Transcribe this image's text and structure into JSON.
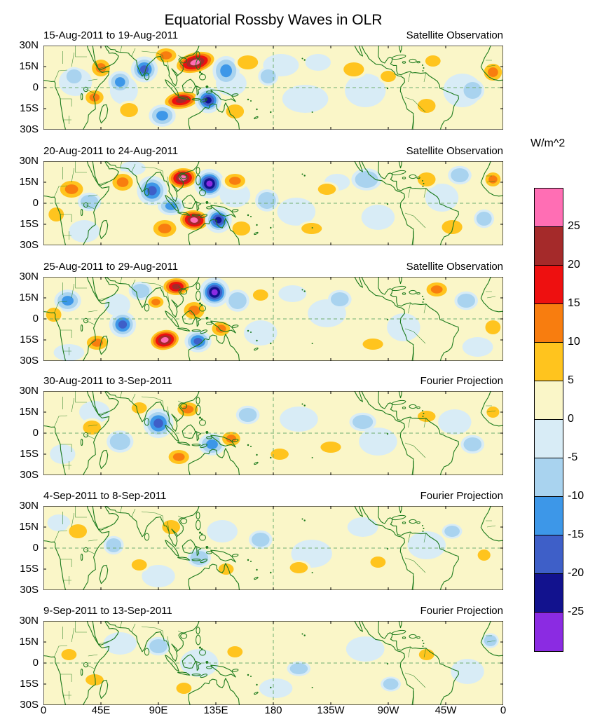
{
  "title": "Equatorial Rossby Waves in OLR",
  "colorbar": {
    "unit_label": "W/m^2",
    "tick_labels": [
      "25",
      "20",
      "15",
      "10",
      "5",
      "0",
      "-5",
      "-10",
      "-15",
      "-20",
      "-25"
    ],
    "colors_top_to_bottom": [
      "#FF6EB4",
      "#A52A2A",
      "#EE1010",
      "#F87D0F",
      "#FFC41E",
      "#FAF6C8",
      "#D8ECF6",
      "#A9D3EF",
      "#3D97E8",
      "#3E5FC8",
      "#12128E",
      "#8B2BE2"
    ]
  },
  "axes": {
    "lat_labels": [
      "30N",
      "15N",
      "0",
      "15S",
      "30S"
    ],
    "lon_labels": [
      "0",
      "45E",
      "90E",
      "135E",
      "180",
      "135W",
      "90W",
      "45W",
      "0"
    ]
  },
  "map_style": {
    "coast_color": "#1B7A1B",
    "dash_color": "#6FAE6F",
    "background": "#FAF6C8"
  },
  "chart_data": {
    "type": "heatmap",
    "title": "Equatorial Rossby Waves in OLR",
    "units": "W/m^2",
    "levels": [
      -25,
      -20,
      -15,
      -10,
      -5,
      0,
      5,
      10,
      15,
      20,
      25
    ],
    "lat_range": [
      -30,
      30
    ],
    "lon_range": [
      0,
      360
    ],
    "anomaly_format": "[lon_deg_east, lat_deg, peak_value_W_per_m2, rx_deg, ry_deg, rotation_deg]",
    "panels": [
      {
        "date_range": "15-Aug-2011 to 19-Aug-2011",
        "source": "Satellite Observation",
        "anomalies": [
          [
            25,
            4,
            -3,
            13,
            10,
            0
          ],
          [
            63,
            -2,
            -3,
            11,
            10,
            0
          ],
          [
            147,
            3,
            -3,
            12,
            9,
            0
          ],
          [
            205,
            -8,
            -3,
            18,
            10,
            0
          ],
          [
            252,
            -2,
            -3,
            16,
            12,
            0
          ],
          [
            328,
            -2,
            -3,
            15,
            12,
            0
          ],
          [
            186,
            16,
            -3,
            14,
            8,
            0
          ],
          [
            215,
            18,
            -3,
            10,
            6,
            0
          ],
          [
            119,
            18,
            26,
            15,
            7,
            -14
          ],
          [
            96,
            23,
            12,
            8,
            5,
            0
          ],
          [
            79,
            13,
            -16,
            8,
            7,
            0
          ],
          [
            143,
            12,
            -13,
            8,
            8,
            0
          ],
          [
            160,
            18,
            9,
            8,
            5,
            0
          ],
          [
            60,
            4,
            -11,
            7,
            6,
            0
          ],
          [
            45,
            14,
            13,
            7,
            6,
            0
          ],
          [
            40,
            -7,
            12,
            7,
            5,
            0
          ],
          [
            24,
            8,
            -8,
            6,
            5,
            0
          ],
          [
            108,
            -9,
            24,
            13,
            6,
            -8
          ],
          [
            129,
            -9,
            -20,
            8,
            7,
            0
          ],
          [
            93,
            -20,
            -12,
            8,
            6,
            0
          ],
          [
            67,
            -16,
            9,
            7,
            5,
            0
          ],
          [
            150,
            -17,
            9,
            7,
            5,
            0
          ],
          [
            176,
            8,
            -6,
            6,
            5,
            0
          ],
          [
            243,
            13,
            8,
            8,
            5,
            0
          ],
          [
            305,
            19,
            8,
            6,
            4,
            0
          ],
          [
            352,
            11,
            13,
            7,
            6,
            0
          ],
          [
            336,
            -2,
            -8,
            7,
            6,
            0
          ],
          [
            300,
            -13,
            8,
            7,
            5,
            0
          ],
          [
            270,
            8,
            6,
            6,
            4,
            0
          ]
        ]
      },
      {
        "date_range": "20-Aug-2011 to 24-Aug-2011",
        "source": "Satellite Observation",
        "anomalies": [
          [
            32,
            -20,
            -3,
            12,
            8,
            0
          ],
          [
            150,
            6,
            -3,
            12,
            9,
            0
          ],
          [
            198,
            -6,
            -3,
            15,
            10,
            0
          ],
          [
            262,
            -10,
            -3,
            13,
            9,
            0
          ],
          [
            312,
            4,
            -3,
            13,
            10,
            0
          ],
          [
            70,
            25,
            -3,
            10,
            5,
            0
          ],
          [
            230,
            15,
            -3,
            10,
            6,
            0
          ],
          [
            109,
            18,
            27,
            11,
            7,
            -5
          ],
          [
            130,
            14,
            -25,
            9,
            8,
            10
          ],
          [
            85,
            9,
            -16,
            9,
            8,
            0
          ],
          [
            150,
            16,
            10,
            8,
            5,
            0
          ],
          [
            62,
            15,
            11,
            8,
            6,
            0
          ],
          [
            22,
            10,
            13,
            9,
            6,
            0
          ],
          [
            36,
            1,
            -9,
            7,
            5,
            0
          ],
          [
            10,
            -8,
            9,
            6,
            5,
            0
          ],
          [
            118,
            -12,
            27,
            11,
            7,
            5
          ],
          [
            137,
            -12,
            -23,
            8,
            7,
            0
          ],
          [
            95,
            -18,
            14,
            9,
            6,
            0
          ],
          [
            100,
            -2,
            -14,
            8,
            5,
            0
          ],
          [
            155,
            -18,
            9,
            7,
            5,
            0
          ],
          [
            175,
            2,
            -6,
            7,
            6,
            0
          ],
          [
            253,
            17,
            -9,
            9,
            6,
            0
          ],
          [
            300,
            17,
            9,
            7,
            5,
            0
          ],
          [
            326,
            20,
            -9,
            7,
            5,
            0
          ],
          [
            352,
            17,
            10,
            6,
            5,
            0
          ],
          [
            320,
            -17,
            9,
            8,
            5,
            0
          ],
          [
            345,
            -11,
            -8,
            6,
            5,
            0
          ],
          [
            222,
            10,
            6,
            7,
            4,
            0
          ],
          [
            210,
            -18,
            6,
            8,
            4,
            0
          ]
        ]
      },
      {
        "date_range": "25-Aug-2011 to 29-Aug-2011",
        "source": "Satellite Observation",
        "anomalies": [
          [
            20,
            -24,
            -3,
            12,
            6,
            0
          ],
          [
            58,
            10,
            -3,
            10,
            8,
            0
          ],
          [
            170,
            -10,
            -3,
            13,
            9,
            0
          ],
          [
            222,
            4,
            -3,
            15,
            10,
            0
          ],
          [
            282,
            -6,
            -3,
            13,
            10,
            0
          ],
          [
            340,
            -20,
            -3,
            12,
            7,
            0
          ],
          [
            195,
            18,
            -3,
            11,
            6,
            0
          ],
          [
            104,
            23,
            23,
            10,
            6,
            0
          ],
          [
            134,
            19,
            -28,
            9,
            8,
            0
          ],
          [
            88,
            12,
            10,
            6,
            4,
            0
          ],
          [
            118,
            6,
            13,
            8,
            6,
            0
          ],
          [
            152,
            13,
            -9,
            7,
            6,
            0
          ],
          [
            95,
            -15,
            25,
            11,
            7,
            -10
          ],
          [
            121,
            -16,
            -19,
            8,
            6,
            0
          ],
          [
            139,
            -7,
            11,
            7,
            5,
            0
          ],
          [
            62,
            -4,
            -16,
            8,
            7,
            0
          ],
          [
            42,
            -17,
            13,
            8,
            5,
            0
          ],
          [
            19,
            13,
            -10,
            8,
            6,
            0
          ],
          [
            8,
            3,
            9,
            6,
            5,
            0
          ],
          [
            76,
            20,
            -9,
            7,
            5,
            0
          ],
          [
            170,
            17,
            7,
            6,
            4,
            0
          ],
          [
            308,
            21,
            12,
            8,
            5,
            0
          ],
          [
            331,
            13,
            -8,
            7,
            5,
            0
          ],
          [
            352,
            -6,
            7,
            6,
            5,
            0
          ],
          [
            258,
            -18,
            7,
            8,
            4,
            0
          ],
          [
            232,
            14,
            -6,
            7,
            5,
            0
          ]
        ]
      },
      {
        "date_range": "30-Aug-2011 to 3-Sep-2011",
        "source": "Fourier Projection",
        "anomalies": [
          [
            40,
            15,
            -3,
            12,
            8,
            0
          ],
          [
            200,
            10,
            -3,
            15,
            9,
            0
          ],
          [
            262,
            -6,
            -3,
            15,
            10,
            0
          ],
          [
            322,
            8,
            -3,
            13,
            9,
            0
          ],
          [
            15,
            -15,
            -3,
            10,
            7,
            0
          ],
          [
            90,
            7,
            -15,
            9,
            8,
            0
          ],
          [
            113,
            17,
            13,
            8,
            5,
            0
          ],
          [
            132,
            -8,
            -13,
            8,
            6,
            0
          ],
          [
            106,
            -17,
            13,
            8,
            5,
            0
          ],
          [
            147,
            -4,
            11,
            7,
            5,
            0
          ],
          [
            160,
            13,
            -7,
            7,
            5,
            0
          ],
          [
            60,
            -6,
            -9,
            8,
            6,
            0
          ],
          [
            38,
            4,
            7,
            7,
            5,
            0
          ],
          [
            75,
            18,
            7,
            6,
            4,
            0
          ],
          [
            185,
            -15,
            6,
            7,
            4,
            0
          ],
          [
            225,
            -10,
            6,
            8,
            4,
            0
          ],
          [
            250,
            8,
            -6,
            8,
            5,
            0
          ],
          [
            300,
            12,
            6,
            7,
            4,
            0
          ],
          [
            336,
            -8,
            -6,
            7,
            5,
            0
          ],
          [
            352,
            15,
            6,
            5,
            4,
            0
          ]
        ]
      },
      {
        "date_range": "4-Sep-2011 to 8-Sep-2011",
        "source": "Fourier Projection",
        "anomalies": [
          [
            90,
            -20,
            -3,
            13,
            8,
            0
          ],
          [
            140,
            12,
            -3,
            12,
            8,
            0
          ],
          [
            210,
            -4,
            -3,
            16,
            10,
            0
          ],
          [
            300,
            2,
            -3,
            15,
            10,
            0
          ],
          [
            12,
            18,
            -3,
            9,
            6,
            0
          ],
          [
            250,
            15,
            -3,
            12,
            7,
            0
          ],
          [
            27,
            12,
            8,
            7,
            5,
            0
          ],
          [
            55,
            2,
            -6,
            6,
            5,
            0
          ],
          [
            100,
            15,
            7,
            7,
            5,
            0
          ],
          [
            122,
            -7,
            -6,
            7,
            5,
            0
          ],
          [
            143,
            -15,
            6,
            6,
            4,
            0
          ],
          [
            170,
            6,
            -6,
            7,
            5,
            0
          ],
          [
            75,
            -12,
            6,
            6,
            4,
            0
          ],
          [
            200,
            -14,
            6,
            7,
            4,
            0
          ],
          [
            262,
            -10,
            6,
            6,
            4,
            0
          ],
          [
            320,
            12,
            -6,
            6,
            4,
            0
          ],
          [
            345,
            -5,
            6,
            5,
            4,
            0
          ]
        ]
      },
      {
        "date_range": "9-Sep-2011 to 13-Sep-2011",
        "source": "Fourier Projection",
        "anomalies": [
          [
            60,
            14,
            -3,
            13,
            8,
            0
          ],
          [
            122,
            0,
            -3,
            15,
            10,
            0
          ],
          [
            252,
            10,
            -3,
            15,
            9,
            0
          ],
          [
            332,
            -6,
            -3,
            13,
            9,
            0
          ],
          [
            182,
            -18,
            -3,
            13,
            7,
            0
          ],
          [
            90,
            12,
            -7,
            7,
            5,
            0
          ],
          [
            40,
            -12,
            6,
            7,
            4,
            0
          ],
          [
            150,
            8,
            6,
            6,
            4,
            0
          ],
          [
            200,
            -4,
            -6,
            7,
            4,
            0
          ],
          [
            300,
            6,
            6,
            6,
            4,
            0
          ],
          [
            20,
            6,
            6,
            6,
            4,
            0
          ],
          [
            272,
            -15,
            -6,
            6,
            4,
            0
          ],
          [
            350,
            16,
            -6,
            5,
            4,
            0
          ],
          [
            110,
            -18,
            6,
            6,
            4,
            0
          ]
        ]
      }
    ]
  }
}
